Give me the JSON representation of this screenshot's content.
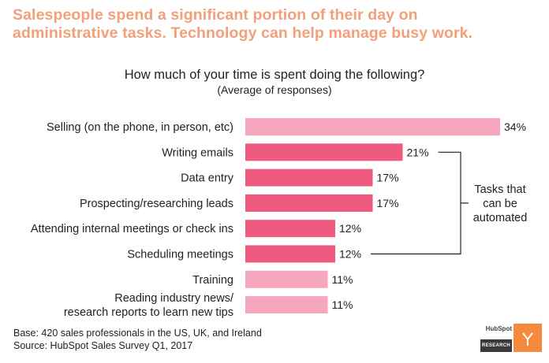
{
  "headline": {
    "line1": "Salespeople spend a significant portion of their day on",
    "line2": "administrative tasks. Technology can help manage busy work."
  },
  "chart_data": {
    "type": "bar",
    "orientation": "horizontal",
    "title": "How much of your time is spent doing the following?",
    "subtitle": "(Average of responses)",
    "categories": [
      [
        "Selling (on the phone, in person, etc)"
      ],
      [
        "Writing emails"
      ],
      [
        "Data entry"
      ],
      [
        "Prospecting/researching leads"
      ],
      [
        "Attending internal meetings or check ins"
      ],
      [
        "Scheduling meetings"
      ],
      [
        "Training"
      ],
      [
        "Reading industry news/",
        "research reports to learn new tips"
      ]
    ],
    "values": [
      34,
      21,
      17,
      17,
      12,
      12,
      11,
      11
    ],
    "value_labels": [
      "34%",
      "21%",
      "17%",
      "17%",
      "12%",
      "12%",
      "11%",
      "11%"
    ],
    "highlighted": [
      false,
      true,
      true,
      true,
      true,
      true,
      false,
      false
    ],
    "colors": {
      "highlight": "#ef5a80",
      "normal": "#f6a7bd"
    },
    "annotation": {
      "lines": [
        "Tasks that",
        "can be",
        "automated"
      ],
      "from_index": 1,
      "to_index": 5
    },
    "grid": false,
    "legend": "none"
  },
  "footer": {
    "base": "Base: 420 sales professionals in the US, UK, and Ireland",
    "source": "Source: HubSpot Sales Survey Q1, 2017"
  },
  "logo": {
    "name": "HubSpot",
    "sub": "RESEARCH",
    "icon": "hubspot-research-logo-icon"
  }
}
